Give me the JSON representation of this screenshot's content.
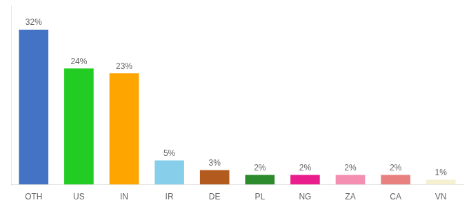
{
  "chart_data": {
    "type": "bar",
    "categories": [
      "OTH",
      "US",
      "IN",
      "IR",
      "DE",
      "PL",
      "NG",
      "ZA",
      "CA",
      "VN"
    ],
    "values": [
      32,
      24,
      23,
      5,
      3,
      2,
      2,
      2,
      2,
      1
    ],
    "value_labels": [
      "32%",
      "24%",
      "23%",
      "5%",
      "3%",
      "2%",
      "2%",
      "2%",
      "2%",
      "1%"
    ],
    "colors": [
      "#4472c4",
      "#22cc22",
      "#ffa500",
      "#87ceeb",
      "#b35a1f",
      "#2d8a2d",
      "#e91e8c",
      "#f48fb1",
      "#e88080",
      "#f5f0d0"
    ],
    "ylim": [
      0,
      37
    ],
    "yticks": [],
    "tick_labels": "x",
    "data_labels": true,
    "grid": false
  }
}
